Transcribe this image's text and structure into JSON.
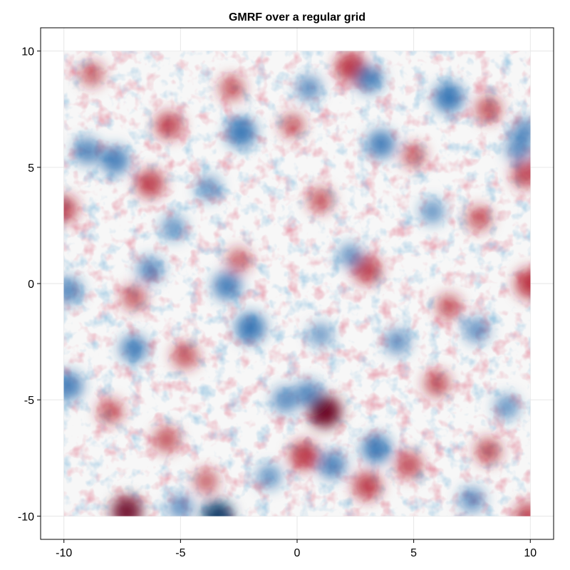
{
  "chart_data": {
    "type": "heatmap",
    "title": "GMRF over a regular grid",
    "xlabel": "",
    "ylabel": "",
    "xlim": [
      -11,
      11
    ],
    "ylim": [
      -11,
      11
    ],
    "field_extent": {
      "x": [
        -10,
        10
      ],
      "y": [
        -10,
        10
      ]
    },
    "x_ticks": [
      -10,
      -5,
      0,
      5,
      10
    ],
    "x_tick_labels": [
      "-10",
      "-5",
      "0",
      "5",
      "10"
    ],
    "y_ticks": [
      -10,
      -5,
      0,
      5,
      10
    ],
    "y_tick_labels": [
      "-10",
      "-5",
      "0",
      "5",
      "10"
    ],
    "grid": true,
    "colormap": "diverging red-white-blue (RdBu)",
    "colors": {
      "negative_extreme": "#053061",
      "negative": "#2166ac",
      "neutral": "#f7f7f7",
      "positive": "#b2182b",
      "positive_extreme": "#67001f"
    },
    "hotspots": [
      {
        "x": 1.2,
        "y": -5.5,
        "value": 1.0
      },
      {
        "x": 2.3,
        "y": 9.3,
        "value": 0.85
      },
      {
        "x": -7.3,
        "y": -9.8,
        "value": 0.9
      },
      {
        "x": 10.0,
        "y": 0.0,
        "value": 0.85
      },
      {
        "x": -10.0,
        "y": 3.2,
        "value": 0.7
      },
      {
        "x": -5.5,
        "y": 6.8,
        "value": 0.7
      },
      {
        "x": -6.3,
        "y": 4.3,
        "value": 0.75
      },
      {
        "x": 3.0,
        "y": 0.6,
        "value": 0.75
      },
      {
        "x": 0.3,
        "y": -7.4,
        "value": 0.8
      },
      {
        "x": 3.0,
        "y": -8.7,
        "value": 0.75
      },
      {
        "x": 8.2,
        "y": 7.5,
        "value": 0.6
      },
      {
        "x": 9.8,
        "y": 4.7,
        "value": 0.7
      },
      {
        "x": -4.8,
        "y": -3.1,
        "value": 0.6
      },
      {
        "x": 6.0,
        "y": -4.3,
        "value": 0.6
      },
      {
        "x": 8.2,
        "y": -7.2,
        "value": 0.6
      },
      {
        "x": -5.6,
        "y": -6.7,
        "value": 0.6
      },
      {
        "x": -7.0,
        "y": -0.6,
        "value": 0.55
      },
      {
        "x": 4.8,
        "y": -7.8,
        "value": 0.65
      },
      {
        "x": 9.9,
        "y": -10.0,
        "value": 0.7
      },
      {
        "x": 7.8,
        "y": 2.8,
        "value": 0.55
      },
      {
        "x": -0.2,
        "y": 6.8,
        "value": 0.5
      },
      {
        "x": 1.0,
        "y": 3.6,
        "value": 0.55
      },
      {
        "x": 6.5,
        "y": -1.0,
        "value": 0.55
      },
      {
        "x": -2.8,
        "y": 8.4,
        "value": 0.55
      },
      {
        "x": -8.8,
        "y": 9.0,
        "value": 0.5
      },
      {
        "x": -8.0,
        "y": -5.5,
        "value": 0.55
      },
      {
        "x": -2.5,
        "y": 1.0,
        "value": 0.5
      },
      {
        "x": 5.0,
        "y": 5.5,
        "value": 0.5
      },
      {
        "x": -3.9,
        "y": -8.5,
        "value": 0.5
      },
      {
        "x": -2.4,
        "y": 6.5,
        "value": -0.85
      },
      {
        "x": 6.5,
        "y": 8.0,
        "value": -0.85
      },
      {
        "x": -2.0,
        "y": -1.9,
        "value": -0.85
      },
      {
        "x": -3.4,
        "y": -10.0,
        "value": -0.9
      },
      {
        "x": 3.4,
        "y": -7.1,
        "value": -0.8
      },
      {
        "x": 1.5,
        "y": -7.8,
        "value": -0.7
      },
      {
        "x": -9.8,
        "y": -4.4,
        "value": -0.75
      },
      {
        "x": -9.8,
        "y": -0.3,
        "value": -0.65
      },
      {
        "x": -6.3,
        "y": 0.6,
        "value": -0.6
      },
      {
        "x": -7.0,
        "y": -2.8,
        "value": -0.7
      },
      {
        "x": -3.0,
        "y": -0.1,
        "value": -0.75
      },
      {
        "x": 3.6,
        "y": 6.0,
        "value": -0.75
      },
      {
        "x": 3.1,
        "y": 8.8,
        "value": -0.7
      },
      {
        "x": -7.8,
        "y": 5.3,
        "value": -0.75
      },
      {
        "x": -9.0,
        "y": 5.7,
        "value": -0.65
      },
      {
        "x": 0.5,
        "y": -4.7,
        "value": -0.6
      },
      {
        "x": -0.5,
        "y": -5.0,
        "value": -0.6
      },
      {
        "x": 4.3,
        "y": -2.5,
        "value": -0.55
      },
      {
        "x": 9.5,
        "y": 5.8,
        "value": -0.6
      },
      {
        "x": 9.8,
        "y": 6.6,
        "value": -0.55
      },
      {
        "x": 0.5,
        "y": 8.4,
        "value": -0.55
      },
      {
        "x": -5.3,
        "y": 2.4,
        "value": -0.5
      },
      {
        "x": 7.7,
        "y": -2.0,
        "value": -0.55
      },
      {
        "x": 2.3,
        "y": 1.2,
        "value": -0.5
      },
      {
        "x": -1.2,
        "y": -8.3,
        "value": -0.5
      },
      {
        "x": 5.8,
        "y": 3.1,
        "value": -0.5
      },
      {
        "x": -5.0,
        "y": -9.6,
        "value": -0.55
      },
      {
        "x": 9.0,
        "y": -5.3,
        "value": -0.5
      },
      {
        "x": 7.5,
        "y": -9.3,
        "value": -0.55
      },
      {
        "x": -3.8,
        "y": 4.1,
        "value": -0.5
      },
      {
        "x": 1.0,
        "y": -2.2,
        "value": -0.45
      }
    ]
  }
}
